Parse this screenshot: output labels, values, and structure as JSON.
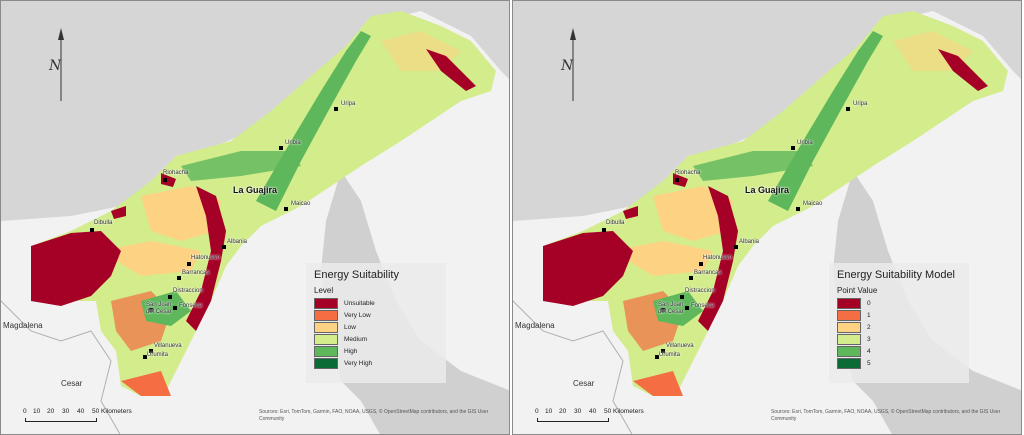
{
  "left_panel": {
    "legend": {
      "title": "Energy Suitability",
      "subtitle": "Level",
      "items": [
        {
          "label": "Unsuitable",
          "color": "#a50026"
        },
        {
          "label": "Very Low",
          "color": "#f46d43"
        },
        {
          "label": "Low",
          "color": "#fdd383"
        },
        {
          "label": "Medium",
          "color": "#d3ec8c"
        },
        {
          "label": "High",
          "color": "#5eb75b"
        },
        {
          "label": "Very High",
          "color": "#0b6b36"
        }
      ]
    }
  },
  "right_panel": {
    "legend": {
      "title": "Energy Suitability Model",
      "subtitle": "Point Value",
      "items": [
        {
          "label": "0",
          "color": "#a50026"
        },
        {
          "label": "1",
          "color": "#f46d43"
        },
        {
          "label": "2",
          "color": "#fdd383"
        },
        {
          "label": "3",
          "color": "#d3ec8c"
        },
        {
          "label": "4",
          "color": "#5eb75b"
        },
        {
          "label": "5",
          "color": "#0b6b36"
        }
      ]
    }
  },
  "map": {
    "region_label": "La Guajira",
    "towns": [
      "Uripa",
      "Uribia",
      "Riohacha",
      "Maicao",
      "Dibulla",
      "Albania",
      "Hatonuevo",
      "Barrancas",
      "Distraccion",
      "Fonseca",
      "San Juan del Cesar",
      "Villanueva",
      "Urumita"
    ],
    "geo_labels": [
      "Magdalena",
      "Cesar"
    ],
    "scale": {
      "ticks": [
        "0",
        "10",
        "20",
        "30",
        "40",
        "50 Kilometers"
      ]
    },
    "attribution": "Sources: Esri, TomTom, Garmin, FAO, NOAA, USGS, © OpenStreetMap contributors, and the GIS User Community",
    "north_symbol": "N",
    "colors": {
      "water": "#d6d6d6",
      "land": "#f2f2f2"
    }
  }
}
